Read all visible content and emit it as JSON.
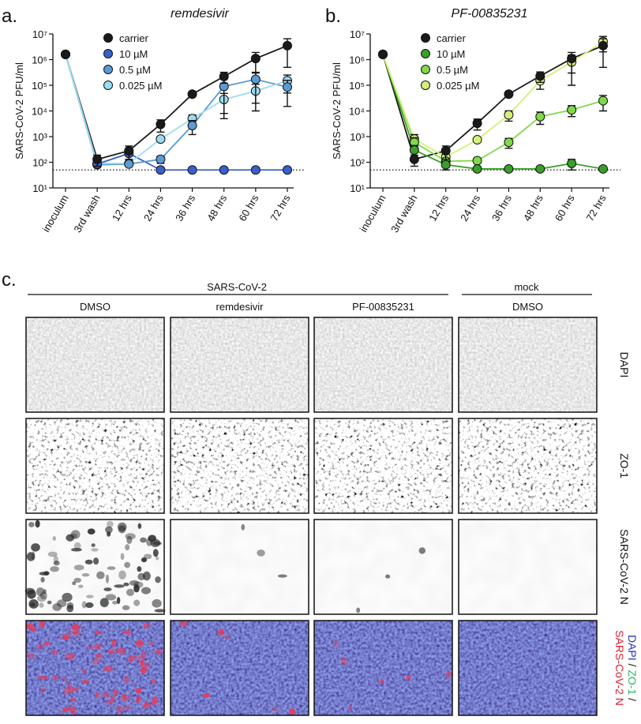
{
  "panel_labels": [
    "a.",
    "b.",
    "c."
  ],
  "chart_data": [
    {
      "type": "line",
      "title": "remdesivir",
      "y_label": "SARS-CoV-2 PFU/ml",
      "categories": [
        "inoculum",
        "3rd wash",
        "12 hrs",
        "24 hrs",
        "36 hrs",
        "48 hrs",
        "60 hrs",
        "72 hrs"
      ],
      "log_scale": true,
      "ylim": [
        10,
        10000000
      ],
      "yticks": [
        {
          "value": 10,
          "label": "10¹"
        },
        {
          "value": 100,
          "label": "10²"
        },
        {
          "value": 1000,
          "label": "10³"
        },
        {
          "value": 10000,
          "label": "10⁴"
        },
        {
          "value": 100000,
          "label": "10⁵"
        },
        {
          "value": 1000000,
          "label": "10⁶"
        },
        {
          "value": 10000000,
          "label": "10⁷"
        }
      ],
      "hline": 50,
      "legend": "upper left",
      "series": [
        {
          "name": "carrier",
          "color": "#1a1a1a",
          "values": [
            1600000,
            130,
            280,
            3000,
            45000,
            220000,
            1100000,
            3500000
          ],
          "errors": [
            null,
            60,
            150,
            1500,
            null,
            100000,
            800000,
            3000000
          ]
        },
        {
          "name": "10 µM",
          "color": "#3a5fcd",
          "values": [
            1600000,
            85,
            220,
            50,
            50,
            50,
            50,
            50
          ],
          "errors": [
            null,
            null,
            null,
            null,
            null,
            null,
            null,
            null
          ]
        },
        {
          "name": "0.5 µM",
          "color": "#5b9bd5",
          "values": [
            1600000,
            80,
            85,
            130,
            2700,
            90000,
            170000,
            85000
          ],
          "errors": [
            null,
            null,
            null,
            40,
            1500,
            85000,
            150000,
            70000
          ]
        },
        {
          "name": "0.025 µM",
          "color": "#9ddcf0",
          "values": [
            1600000,
            90,
            90,
            800,
            5000,
            28000,
            60000,
            150000
          ],
          "errors": [
            null,
            null,
            null,
            null,
            2000,
            20000,
            50000,
            100000
          ]
        }
      ]
    },
    {
      "type": "line",
      "title": "PF-00835231",
      "y_label": "SARS-CoV-2 PFU/ml",
      "categories": [
        "inoculum",
        "3rd wash",
        "12 hrs",
        "24 hrs",
        "36 hrs",
        "48 hrs",
        "60 hrs",
        "72 hrs"
      ],
      "log_scale": true,
      "ylim": [
        10,
        10000000
      ],
      "yticks": [
        {
          "value": 10,
          "label": "10¹"
        },
        {
          "value": 100,
          "label": "10²"
        },
        {
          "value": 1000,
          "label": "10³"
        },
        {
          "value": 10000,
          "label": "10⁴"
        },
        {
          "value": 100000,
          "label": "10⁵"
        },
        {
          "value": 1000000,
          "label": "10⁶"
        },
        {
          "value": 10000000,
          "label": "10⁷"
        }
      ],
      "hline": 50,
      "legend": "upper left",
      "series": [
        {
          "name": "carrier",
          "color": "#1a1a1a",
          "values": [
            1600000,
            130,
            280,
            3300,
            45000,
            230000,
            1100000,
            3500000
          ],
          "errors": [
            null,
            60,
            150,
            1500,
            null,
            100000,
            800000,
            3000000
          ]
        },
        {
          "name": "10 µM",
          "color": "#3a9e2a",
          "values": [
            1600000,
            300,
            80,
            55,
            55,
            55,
            90,
            55
          ],
          "errors": [
            null,
            150,
            30,
            null,
            null,
            null,
            40,
            null
          ]
        },
        {
          "name": "0.5 µM",
          "color": "#7fd94a",
          "values": [
            1600000,
            600,
            110,
            115,
            600,
            6000,
            11000,
            25000
          ],
          "errors": [
            null,
            300,
            null,
            null,
            250,
            3000,
            5000,
            15000
          ]
        },
        {
          "name": "0.025 µM",
          "color": "#d4f07a",
          "values": [
            1600000,
            800,
            160,
            750,
            7000,
            150000,
            800000,
            5000000
          ],
          "errors": [
            null,
            400,
            null,
            null,
            3000,
            80000,
            700000,
            3000000
          ]
        }
      ]
    }
  ],
  "panel_c": {
    "group_headers": [
      "SARS-CoV-2",
      "mock"
    ],
    "columns": [
      "DMSO",
      "remdesivir",
      "PF-00835231",
      "DMSO"
    ],
    "rows": [
      "DAPI",
      "ZO-1",
      "SARS-CoV-2 N"
    ],
    "merge_label": [
      "DAPI",
      " / ",
      "ZO-1",
      " /",
      "SARS-CoV-2 N"
    ]
  }
}
